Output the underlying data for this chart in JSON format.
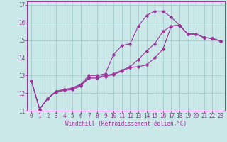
{
  "xlabel": "Windchill (Refroidissement éolien,°C)",
  "background_color": "#cbe8e8",
  "grid_color": "#a0c8c8",
  "line_color": "#993399",
  "spine_color": "#993399",
  "xlim": [
    -0.5,
    23.5
  ],
  "ylim": [
    11,
    17.2
  ],
  "x_ticks": [
    0,
    1,
    2,
    3,
    4,
    5,
    6,
    7,
    8,
    9,
    10,
    11,
    12,
    13,
    14,
    15,
    16,
    17,
    18,
    19,
    20,
    21,
    22,
    23
  ],
  "y_ticks": [
    11,
    12,
    13,
    14,
    15,
    16,
    17
  ],
  "line1_x": [
    0,
    1,
    2,
    3,
    4,
    5,
    6,
    7,
    8,
    9,
    10,
    11,
    12,
    13,
    14,
    15,
    16,
    17,
    18,
    19,
    20,
    21,
    22,
    23
  ],
  "line1_y": [
    12.7,
    11.1,
    11.7,
    12.1,
    12.2,
    12.3,
    12.5,
    13.0,
    13.0,
    13.1,
    14.2,
    14.7,
    14.8,
    15.8,
    16.4,
    16.65,
    16.65,
    16.3,
    15.85,
    15.35,
    15.35,
    15.15,
    15.1,
    14.95
  ],
  "line2_x": [
    0,
    1,
    2,
    3,
    4,
    5,
    6,
    7,
    8,
    9,
    10,
    11,
    12,
    13,
    14,
    15,
    16,
    17,
    18,
    19,
    20,
    21,
    22,
    23
  ],
  "line2_y": [
    12.7,
    11.1,
    11.7,
    12.1,
    12.2,
    12.25,
    12.45,
    12.9,
    12.9,
    13.0,
    13.1,
    13.3,
    13.5,
    13.9,
    14.4,
    14.8,
    15.5,
    15.8,
    15.85,
    15.35,
    15.35,
    15.15,
    15.1,
    14.95
  ],
  "line3_x": [
    0,
    1,
    2,
    3,
    4,
    5,
    6,
    7,
    8,
    9,
    10,
    11,
    12,
    13,
    14,
    15,
    16,
    17,
    18,
    19,
    20,
    21,
    22,
    23
  ],
  "line3_y": [
    12.7,
    11.1,
    11.7,
    12.05,
    12.15,
    12.2,
    12.4,
    12.85,
    12.85,
    12.95,
    13.05,
    13.25,
    13.45,
    13.5,
    13.6,
    14.0,
    14.5,
    15.8,
    15.85,
    15.35,
    15.35,
    15.15,
    15.1,
    14.95
  ],
  "tick_fontsize": 5.5,
  "xlabel_fontsize": 5.5,
  "marker_size": 1.8,
  "line_width": 0.8
}
